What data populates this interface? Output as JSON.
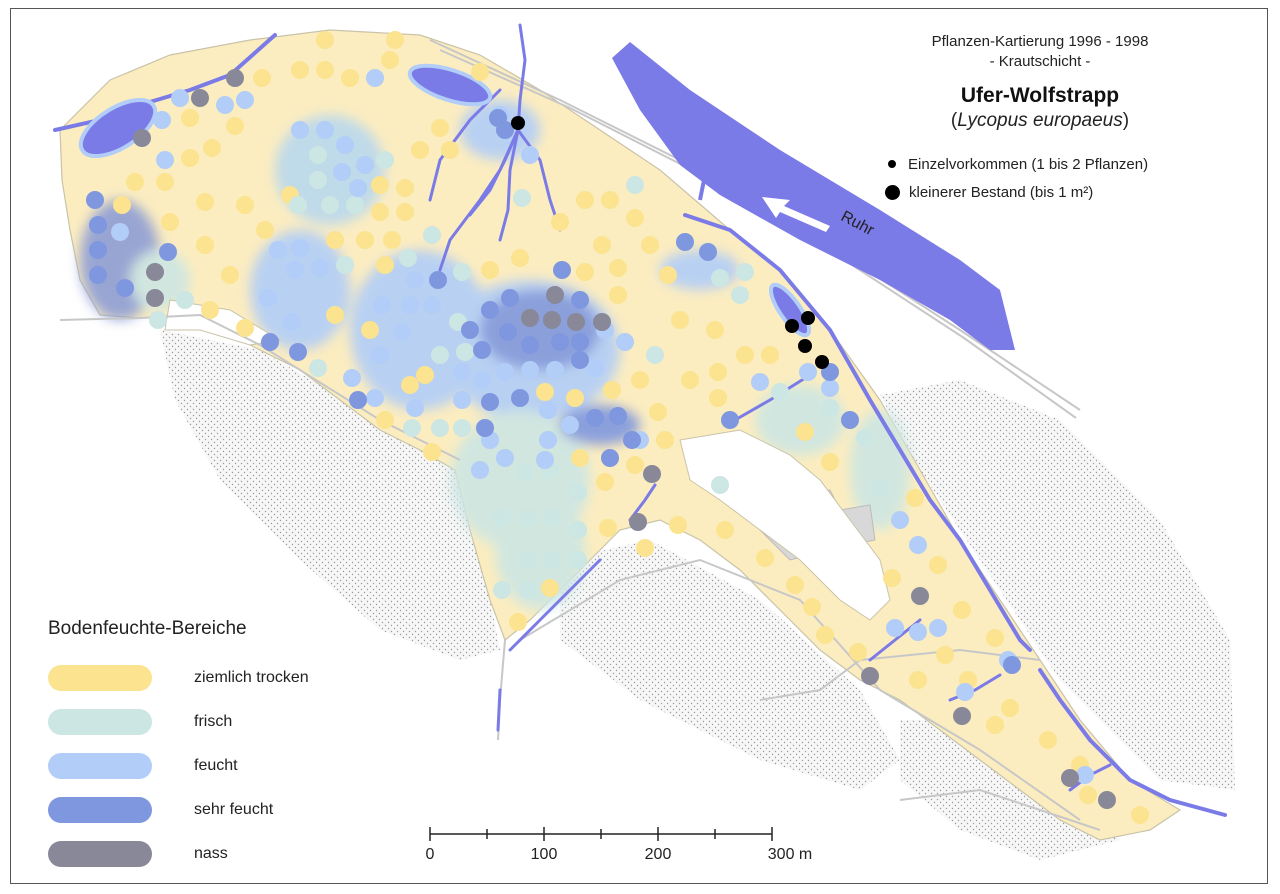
{
  "header": {
    "line1": "Pflanzen-Kartierung 1996 - 1998",
    "line2": "- Krautschicht -",
    "title": "Ufer-Wolfstrapp",
    "latin_open": "(",
    "latin_name": "Lycopus europaeus",
    "latin_close": ")"
  },
  "symbol_legend": {
    "single": "Einzelvorkommen (1 bis 2 Pflanzen)",
    "small_stand": "kleinerer Bestand (bis 1 m²)"
  },
  "river": {
    "label": "Ruhr",
    "color": "#7b7be8"
  },
  "moisture_legend": {
    "title": "Bodenfeuchte-Bereiche",
    "items": [
      {
        "label": "ziemlich trocken",
        "color": "#fbe38f"
      },
      {
        "label": "frisch",
        "color": "#cce6e3"
      },
      {
        "label": "feucht",
        "color": "#b1cdf8"
      },
      {
        "label": "sehr feucht",
        "color": "#7f97df"
      },
      {
        "label": "nass",
        "color": "#888898"
      }
    ]
  },
  "scale_bar": {
    "ticks": [
      "0",
      "100",
      "200",
      "300 m"
    ]
  }
}
